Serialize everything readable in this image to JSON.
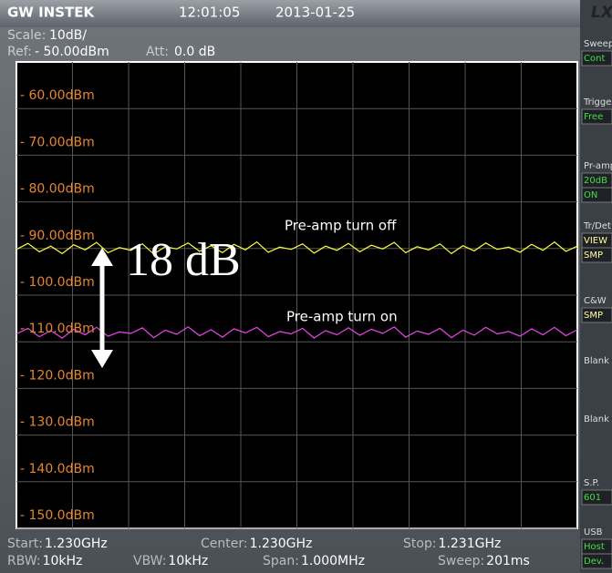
{
  "chart_data": {
    "type": "line",
    "ylim": [
      -150,
      -50
    ],
    "yticks": [
      {
        "value": -60,
        "label": "- 60.00dBm"
      },
      {
        "value": -70,
        "label": "- 70.00dBm"
      },
      {
        "value": -80,
        "label": "- 80.00dBm"
      },
      {
        "value": -90,
        "label": "- 90.00dBm"
      },
      {
        "value": -100,
        "label": "- 100.0dBm"
      },
      {
        "value": -110,
        "label": "- 110.0dBm"
      },
      {
        "value": -120,
        "label": "- 120.0dBm"
      },
      {
        "value": -130,
        "label": "- 130.0dBm"
      },
      {
        "value": -140,
        "label": "- 140.0dBm"
      },
      {
        "value": -150,
        "label": "- 150.0dBm"
      }
    ],
    "grid": true,
    "series": [
      {
        "color": "#ffff33",
        "values": [
          -90.2,
          -88.9,
          -90.7,
          -89.5,
          -91.1,
          -89.2,
          -90.3,
          -88.7,
          -90.9,
          -89.8,
          -90.4,
          -89.0,
          -91.2,
          -89.6,
          -90.1,
          -88.8,
          -90.6,
          -89.4,
          -90.9,
          -89.1,
          -90.3,
          -88.6,
          -90.8,
          -89.7,
          -90.2,
          -89.0,
          -91.0,
          -89.5,
          -90.4,
          -88.9,
          -90.7,
          -89.3,
          -90.1,
          -88.7,
          -90.9,
          -89.6,
          -90.3,
          -89.0,
          -91.1,
          -89.4,
          -90.5,
          -88.8,
          -90.2,
          -89.7,
          -90.8,
          -89.1,
          -90.4,
          -88.6,
          -90.6,
          -89.5
        ]
      },
      {
        "color": "#ee44ee",
        "values": [
          -108.3,
          -107.1,
          -108.9,
          -107.6,
          -109.2,
          -107.3,
          -108.5,
          -106.9,
          -108.8,
          -107.9,
          -108.2,
          -107.0,
          -109.1,
          -107.5,
          -108.4,
          -106.8,
          -108.7,
          -107.4,
          -109.0,
          -107.2,
          -108.1,
          -106.9,
          -108.9,
          -107.8,
          -108.3,
          -107.1,
          -109.2,
          -107.6,
          -108.5,
          -107.0,
          -108.6,
          -107.3,
          -108.2,
          -106.8,
          -109.0,
          -107.7,
          -108.4,
          -107.1,
          -109.1,
          -107.5,
          -108.6,
          -106.9,
          -108.3,
          -107.8,
          -108.8,
          -107.2,
          -108.5,
          -106.9,
          -108.7,
          -107.4
        ]
      }
    ],
    "annotations": [
      "Pre-amp turn off",
      "Pre-amp turn on",
      "18 dB"
    ]
  },
  "screen": {
    "brand": "GW INSTEK",
    "time": "12:01:05",
    "date": "2013-01-25",
    "logo": "LX",
    "scale_label": "Scale:",
    "scale_value": "10dB/",
    "ref_label": "Ref:",
    "ref_value": "- 50.00dBm",
    "att_label": "Att:",
    "att_value": "0.0 dB",
    "bottom": [
      [
        [
          "Start:",
          "1.230GHz"
        ],
        [
          "Center:",
          "1.230GHz"
        ],
        [
          "Stop:",
          "1.231GHz"
        ]
      ],
      [
        [
          "RBW:",
          "10kHz"
        ],
        [
          "VBW:",
          "10kHz"
        ],
        [
          "Span:",
          "1.000MHz"
        ],
        [
          "Sweep:",
          "201ms"
        ]
      ]
    ],
    "side": [
      [
        "Sweep",
        "Cont"
      ],
      [
        "Trigger",
        "Free"
      ],
      [
        "Pr-amp",
        "20dB",
        "ON"
      ],
      [
        "Tr/Det",
        "VIEW",
        "SMP"
      ],
      [
        "C&W",
        "SMP"
      ],
      [
        "Blank"
      ],
      [
        "Blank"
      ],
      [
        "S.P.",
        "601"
      ],
      [
        "USB",
        "Host",
        "Dev."
      ]
    ]
  }
}
